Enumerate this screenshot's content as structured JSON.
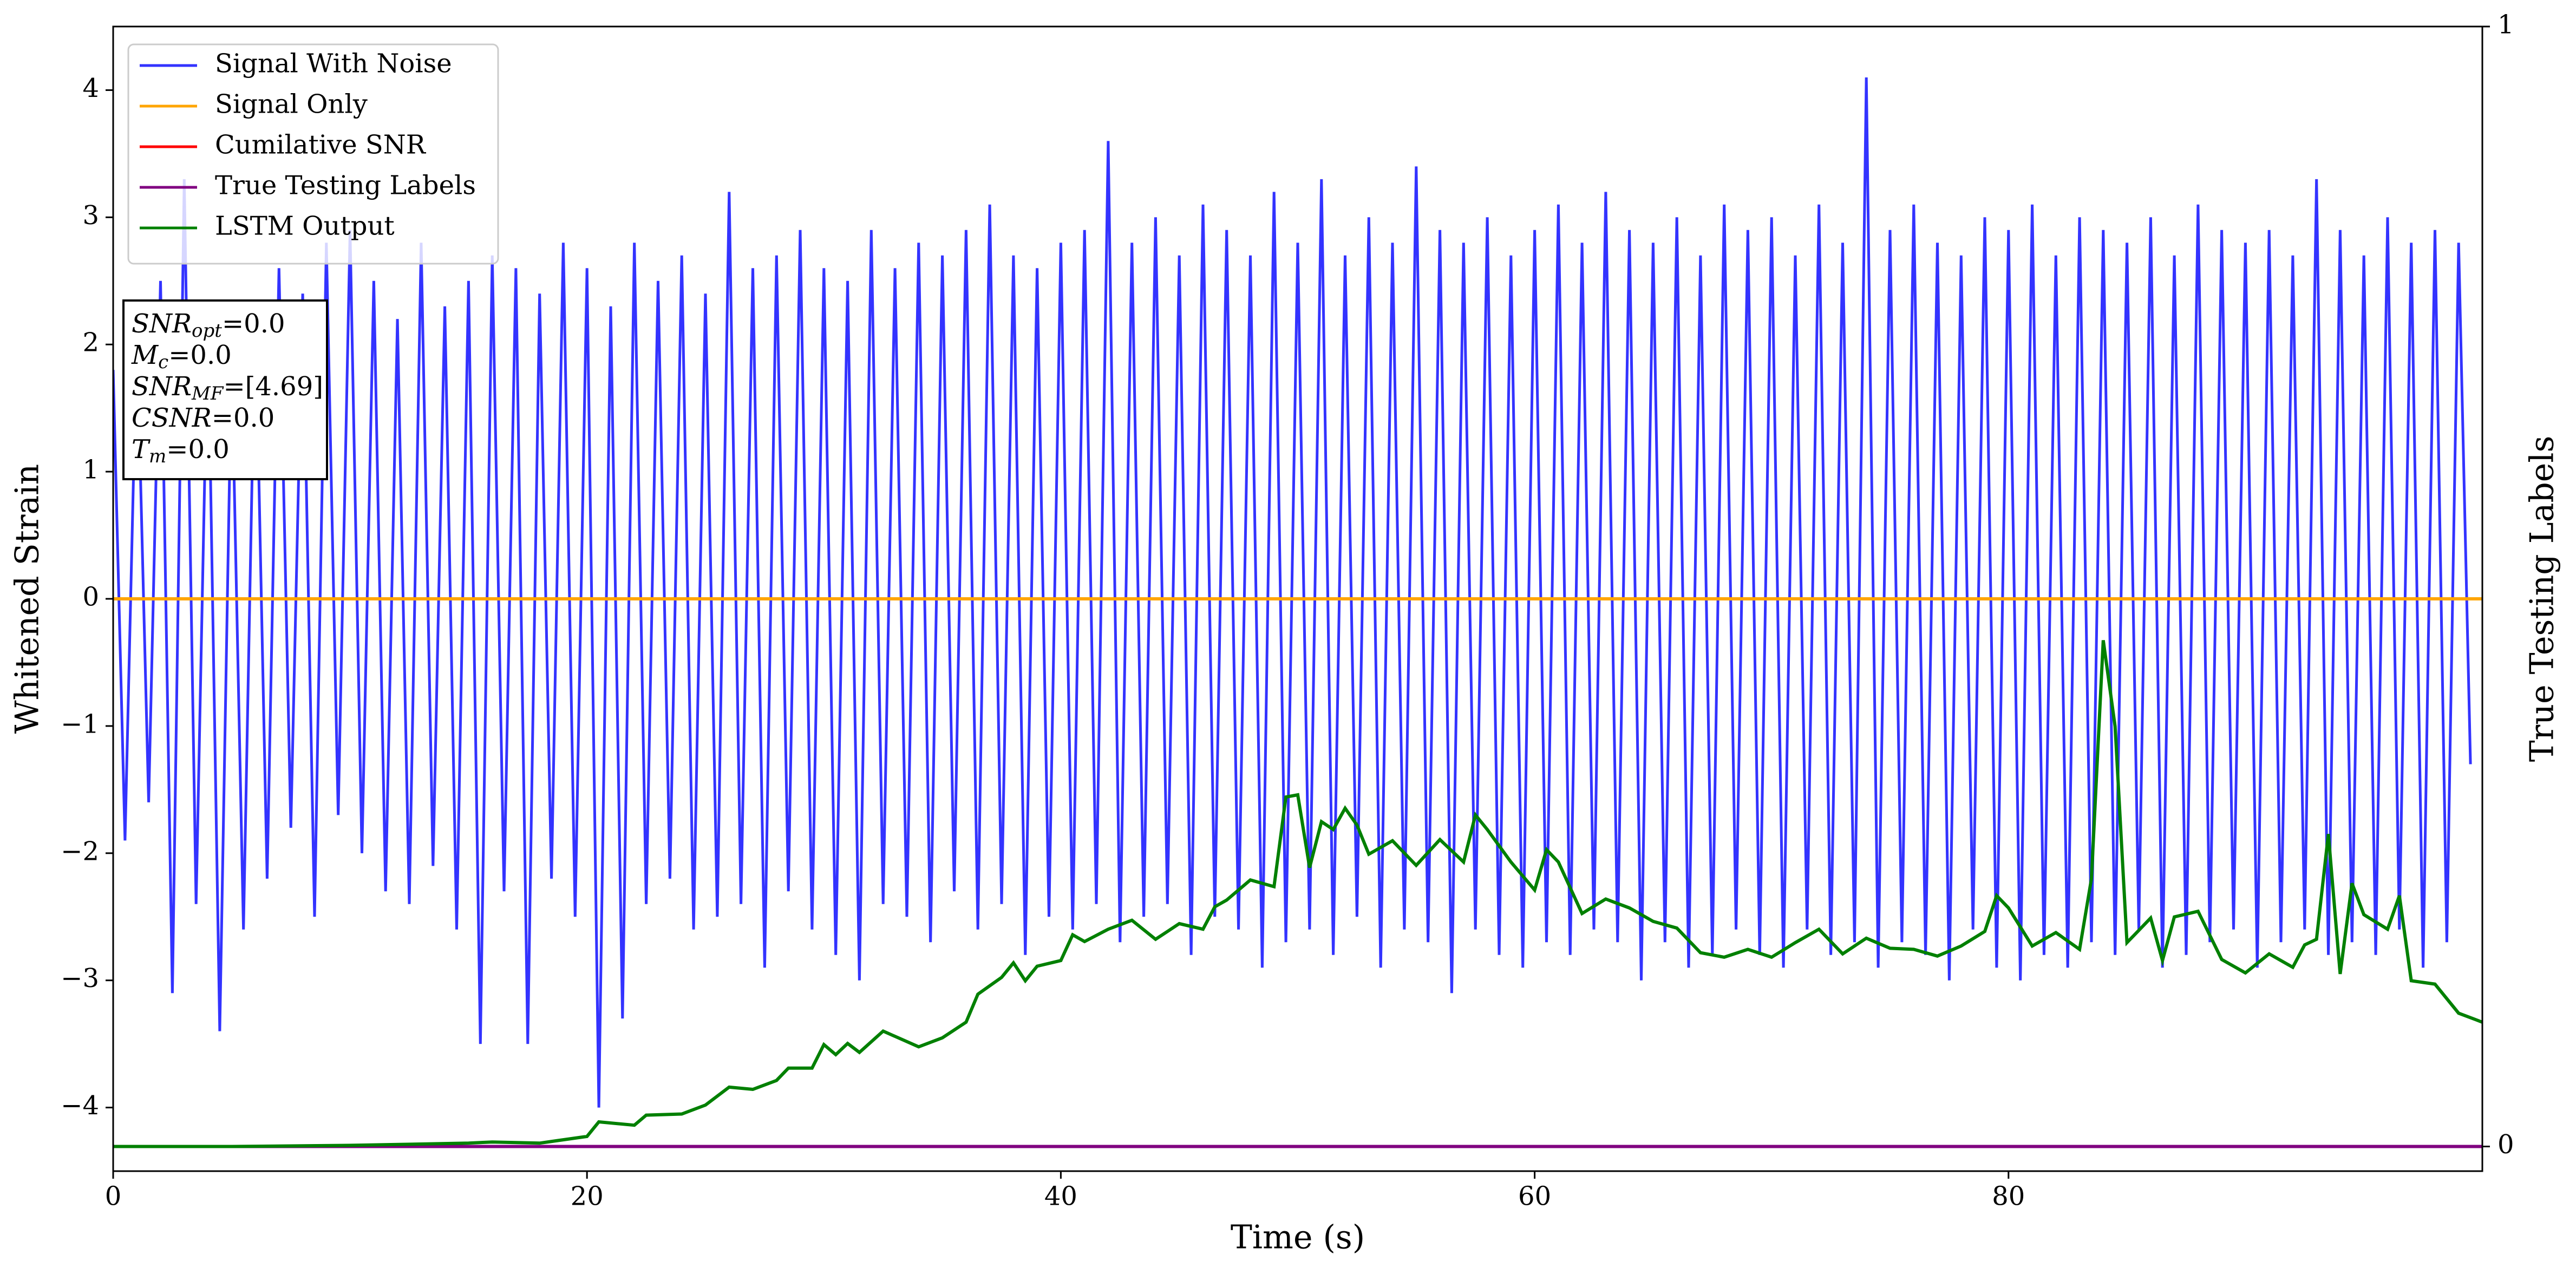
{
  "chart_data": {
    "type": "line",
    "xlabel": "Time (s)",
    "ylabel": "Whitened Strain",
    "y2label": "True Testing Labels",
    "xlim": [
      0,
      100
    ],
    "ylim": [
      -4.5,
      4.5
    ],
    "y2lim": [
      -0.022,
      1
    ],
    "xticks": [
      0,
      20,
      40,
      60,
      80
    ],
    "yticks": [
      {
        "value": -4,
        "label": "−4"
      },
      {
        "value": -3,
        "label": "−3"
      },
      {
        "value": -2,
        "label": "−2"
      },
      {
        "value": -1,
        "label": "−1"
      },
      0,
      1,
      2,
      3,
      4
    ],
    "y2ticks": [
      0,
      1
    ],
    "legend": "upper left",
    "annotation": [
      {
        "base": "SNR",
        "sub": "opt",
        "rest": "=0.0"
      },
      {
        "base": "M",
        "sub": "c",
        "rest": "=0.0"
      },
      {
        "base": "SNR",
        "sub": "MF",
        "rest": "=[4.69]"
      },
      {
        "base": "CSNR",
        "sub": "",
        "rest": "=0.0"
      },
      {
        "base": "T",
        "sub": "m",
        "rest": "=0.0"
      }
    ],
    "series": [
      {
        "name": "Signal With Noise",
        "color": "#3333ff",
        "axis": "y",
        "x": [
          0,
          0.5,
          1,
          1.5,
          2,
          2.5,
          3,
          3.5,
          4,
          4.5,
          5,
          5.5,
          6,
          6.5,
          7,
          7.5,
          8,
          8.5,
          9,
          9.5,
          10,
          10.5,
          11,
          11.5,
          12,
          12.5,
          13,
          13.5,
          14,
          14.5,
          15,
          15.5,
          16,
          16.5,
          17,
          17.5,
          18,
          18.5,
          19,
          19.5,
          20,
          20.5,
          21,
          21.5,
          22,
          22.5,
          23,
          23.5,
          24,
          24.5,
          25,
          25.5,
          26,
          26.5,
          27,
          27.5,
          28,
          28.5,
          29,
          29.5,
          30,
          30.5,
          31,
          31.5,
          32,
          32.5,
          33,
          33.5,
          34,
          34.5,
          35,
          35.5,
          36,
          36.5,
          37,
          37.5,
          38,
          38.5,
          39,
          39.5,
          40,
          40.5,
          41,
          41.5,
          42,
          42.5,
          43,
          43.5,
          44,
          44.5,
          45,
          45.5,
          46,
          46.5,
          47,
          47.5,
          48,
          48.5,
          49,
          49.5,
          50,
          50.5,
          51,
          51.5,
          52,
          52.5,
          53,
          53.5,
          54,
          54.5,
          55,
          55.5,
          56,
          56.5,
          57,
          57.5,
          58,
          58.5,
          59,
          59.5,
          60,
          60.5,
          61,
          61.5,
          62,
          62.5,
          63,
          63.5,
          64,
          64.5,
          65,
          65.5,
          66,
          66.5,
          67,
          67.5,
          68,
          68.5,
          69,
          69.5,
          70,
          70.5,
          71,
          71.5,
          72,
          72.5,
          73,
          73.5,
          74,
          74.5,
          75,
          75.5,
          76,
          76.5,
          77,
          77.5,
          78,
          78.5,
          79,
          79.5,
          80,
          80.5,
          81,
          81.5,
          82,
          82.5,
          83,
          83.5,
          84,
          84.5,
          85,
          85.5,
          86,
          86.5,
          87,
          87.5,
          88,
          88.5,
          89,
          89.5,
          90,
          90.5,
          91,
          91.5,
          92,
          92.5,
          93,
          93.5,
          94,
          94.5,
          95,
          95.5,
          96,
          96.5,
          97,
          97.5,
          98,
          98.5,
          99,
          99.5
        ],
        "values": [
          1.8,
          -1.9,
          2.1,
          -1.6,
          2.5,
          -3.1,
          3.3,
          -2.4,
          2.2,
          -3.4,
          1.9,
          -2.6,
          2.3,
          -2.2,
          2.6,
          -1.8,
          2.4,
          -2.5,
          2.8,
          -1.7,
          2.9,
          -2.0,
          2.5,
          -2.3,
          2.2,
          -2.4,
          2.8,
          -2.1,
          2.3,
          -2.6,
          2.5,
          -3.5,
          2.7,
          -2.3,
          2.6,
          -3.5,
          2.4,
          -2.2,
          2.8,
          -2.5,
          2.6,
          -4.0,
          2.3,
          -3.3,
          2.8,
          -2.4,
          2.5,
          -2.2,
          2.7,
          -2.6,
          2.4,
          -2.5,
          3.2,
          -2.4,
          2.6,
          -2.9,
          2.7,
          -2.3,
          2.9,
          -2.6,
          2.6,
          -2.8,
          2.5,
          -3.0,
          2.9,
          -2.4,
          2.6,
          -2.5,
          2.8,
          -2.7,
          2.7,
          -2.3,
          2.9,
          -2.6,
          3.1,
          -2.4,
          2.7,
          -2.8,
          2.6,
          -2.5,
          2.8,
          -2.6,
          2.9,
          -2.4,
          3.6,
          -2.7,
          2.8,
          -2.5,
          3.0,
          -2.4,
          2.7,
          -2.8,
          3.1,
          -2.5,
          2.9,
          -2.6,
          2.7,
          -2.9,
          3.2,
          -2.7,
          2.8,
          -2.6,
          3.3,
          -2.8,
          2.7,
          -2.5,
          3.0,
          -2.9,
          2.8,
          -2.6,
          3.4,
          -2.7,
          2.9,
          -3.1,
          2.8,
          -2.6,
          3.0,
          -2.8,
          2.7,
          -2.9,
          2.9,
          -2.7,
          3.1,
          -2.8,
          2.8,
          -2.6,
          3.2,
          -2.7,
          2.9,
          -3.0,
          2.8,
          -2.7,
          3.0,
          -2.9,
          2.7,
          -2.8,
          3.1,
          -2.6,
          2.9,
          -2.8,
          3.0,
          -2.9,
          2.7,
          -2.6,
          3.1,
          -2.8,
          2.8,
          -2.7,
          4.1,
          -2.9,
          2.9,
          -2.7,
          3.1,
          -2.8,
          2.8,
          -3.0,
          2.7,
          -2.6,
          3.0,
          -2.9,
          2.9,
          -3.0,
          3.1,
          -2.8,
          2.7,
          -2.9,
          3.0,
          -2.7,
          2.9,
          -2.8,
          2.8,
          -2.6,
          3.0,
          -2.9,
          2.7,
          -2.8,
          3.1,
          -2.7,
          2.9,
          -2.6,
          2.8,
          -2.9,
          2.9,
          -2.7,
          2.7,
          -2.6,
          3.3,
          -2.8,
          2.9,
          -2.7,
          2.7,
          -2.8,
          3.0,
          -2.6,
          2.8,
          -2.9,
          2.9,
          -2.7,
          2.8,
          -1.3
        ]
      },
      {
        "name": "Signal Only",
        "color": "#ffa500",
        "axis": "y",
        "x": [
          0,
          100
        ],
        "values": [
          0,
          0
        ]
      },
      {
        "name": "Cumilative SNR",
        "color": "#ff0000",
        "axis": "y2",
        "x": [
          0,
          100
        ],
        "values": [
          0,
          0
        ]
      },
      {
        "name": "True Testing Labels",
        "color": "#800080",
        "axis": "y2",
        "x": [
          0,
          100
        ],
        "values": [
          0,
          0
        ]
      },
      {
        "name": "LSTM Output",
        "color": "#008000",
        "axis": "y2",
        "x": [
          0,
          5,
          10,
          15,
          16,
          18,
          20,
          20.5,
          22,
          22.5,
          24,
          25,
          26,
          27,
          28,
          28.5,
          29.5,
          30,
          30.5,
          31,
          31.5,
          32.5,
          34,
          35,
          36,
          36.5,
          37.5,
          38,
          38.5,
          39,
          40,
          40.5,
          41,
          42,
          43,
          44,
          45,
          46,
          46.5,
          47,
          48,
          49,
          49.5,
          50,
          50.5,
          51,
          51.5,
          52,
          52.5,
          53,
          54,
          55,
          56,
          57,
          57.5,
          58,
          59,
          60,
          60.5,
          61,
          62,
          63,
          64,
          65,
          66,
          67,
          68,
          69,
          70,
          71,
          72,
          73,
          74,
          75,
          76,
          77,
          78,
          79,
          79.5,
          80,
          81,
          82,
          83,
          83.5,
          84,
          84.5,
          85,
          86,
          86.5,
          87,
          88,
          89,
          90,
          91,
          92,
          92.5,
          93,
          93.5,
          94,
          94.5,
          95,
          96,
          96.5,
          97,
          98,
          99,
          100
        ],
        "values": [
          0,
          0,
          0.001,
          0.003,
          0.004,
          0.003,
          0.009,
          0.022,
          0.019,
          0.028,
          0.029,
          0.037,
          0.053,
          0.051,
          0.059,
          0.07,
          0.07,
          0.091,
          0.082,
          0.092,
          0.084,
          0.103,
          0.089,
          0.097,
          0.111,
          0.136,
          0.151,
          0.164,
          0.148,
          0.161,
          0.166,
          0.189,
          0.183,
          0.194,
          0.202,
          0.185,
          0.199,
          0.194,
          0.214,
          0.22,
          0.238,
          0.232,
          0.312,
          0.314,
          0.249,
          0.29,
          0.283,
          0.302,
          0.287,
          0.261,
          0.273,
          0.251,
          0.274,
          0.254,
          0.296,
          0.283,
          0.254,
          0.229,
          0.265,
          0.254,
          0.208,
          0.221,
          0.213,
          0.201,
          0.195,
          0.173,
          0.169,
          0.176,
          0.169,
          0.182,
          0.194,
          0.172,
          0.186,
          0.177,
          0.176,
          0.17,
          0.179,
          0.192,
          0.224,
          0.213,
          0.179,
          0.191,
          0.176,
          0.239,
          0.452,
          0.375,
          0.182,
          0.204,
          0.166,
          0.205,
          0.21,
          0.167,
          0.155,
          0.172,
          0.16,
          0.18,
          0.185,
          0.279,
          0.154,
          0.235,
          0.207,
          0.194,
          0.224,
          0.148,
          0.145,
          0.119,
          0.111
        ]
      }
    ]
  }
}
